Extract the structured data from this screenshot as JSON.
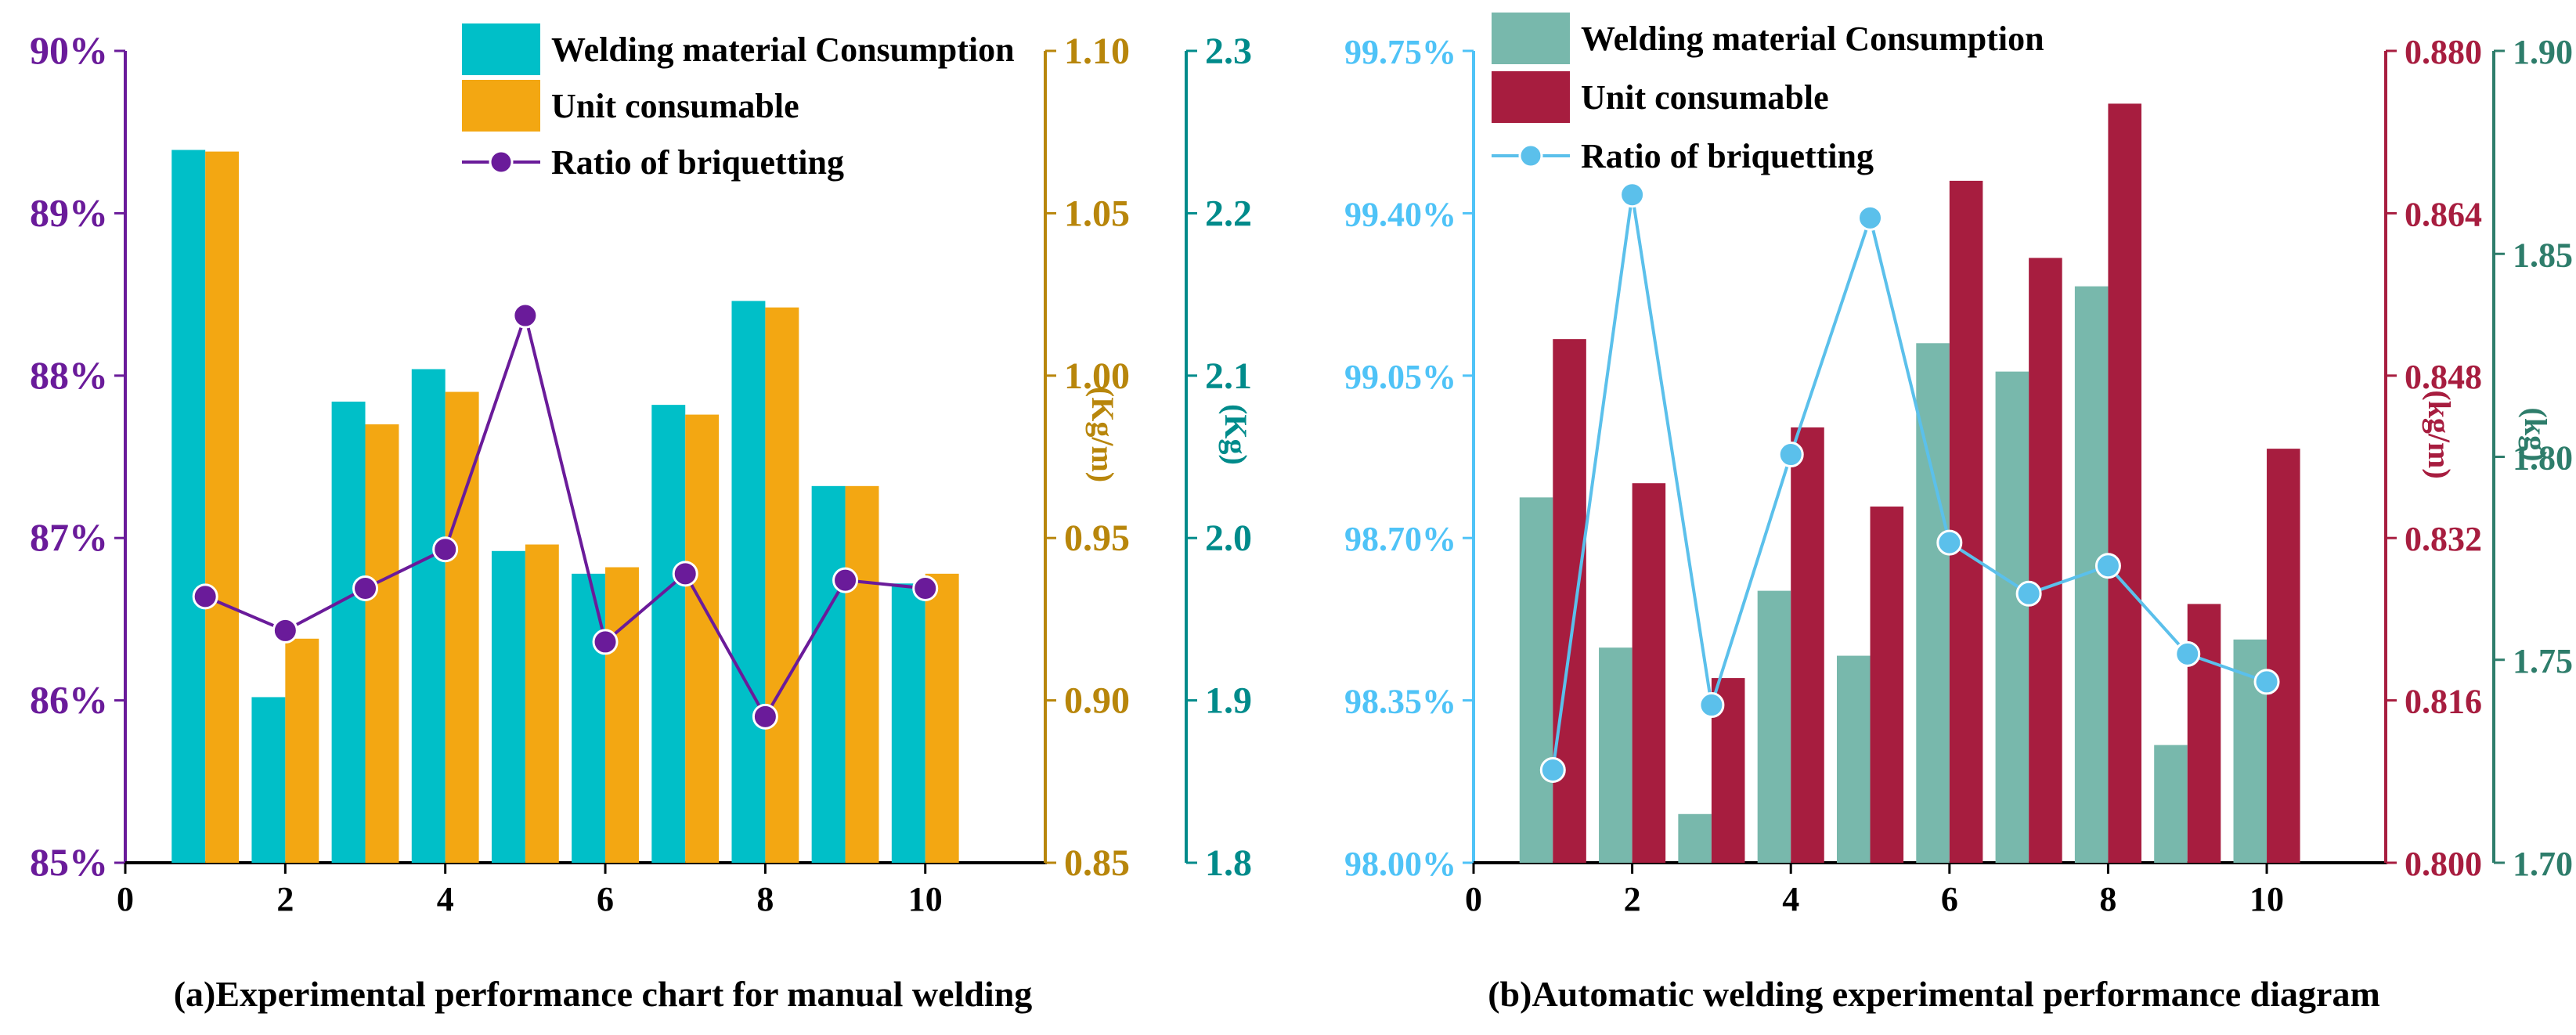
{
  "chart_data": [
    {
      "type": "bar",
      "title": "(a)Experimental performance chart for manual welding",
      "x": [
        1,
        2,
        3,
        4,
        5,
        6,
        7,
        8,
        9,
        10
      ],
      "xlim": [
        0,
        11.5
      ],
      "xticks": [
        "0",
        "2",
        "4",
        "6",
        "8",
        "10"
      ],
      "series": [
        {
          "name": "Welding material Consumption",
          "kind": "bar",
          "axis": "kg",
          "color": "#00BFC8",
          "values": [
            2.239,
            1.902,
            2.084,
            2.104,
            1.992,
            1.978,
            2.082,
            2.146,
            2.032,
            1.972
          ]
        },
        {
          "name": "Unit consumable",
          "kind": "bar",
          "axis": "kgm",
          "color": "#F3A712",
          "values": [
            1.069,
            0.919,
            0.985,
            0.995,
            0.948,
            0.941,
            0.988,
            1.021,
            0.966,
            0.939
          ]
        },
        {
          "name": "Ratio of briquetting",
          "kind": "line",
          "axis": "pct",
          "color": "#6A1B9A",
          "values": [
            86.64,
            86.43,
            86.69,
            86.93,
            88.37,
            86.36,
            86.78,
            85.9,
            86.74,
            86.69
          ]
        }
      ],
      "y_left": {
        "range": [
          85,
          90
        ],
        "ticks": [
          "85%",
          "86%",
          "87%",
          "88%",
          "89%",
          "90%"
        ],
        "color": "#6A1B9A"
      },
      "y_right1": {
        "range": [
          0.85,
          1.1
        ],
        "ticks": [
          "0.85",
          "0.90",
          "0.95",
          "1.00",
          "1.05",
          "1.10"
        ],
        "label": "(Kg/m)",
        "color": "#B8860B"
      },
      "y_right2": {
        "range": [
          1.8,
          2.3
        ],
        "ticks": [
          "1.8",
          "1.9",
          "2.0",
          "2.1",
          "2.2",
          "2.3"
        ],
        "label": "(Kg)",
        "color": "#008B8B"
      },
      "grid": false,
      "legend": "top-right"
    },
    {
      "type": "bar",
      "title": "(b)Automatic welding experimental performance diagram",
      "x": [
        1,
        2,
        3,
        4,
        5,
        6,
        7,
        8,
        9,
        10
      ],
      "xlim": [
        0,
        11.5
      ],
      "xticks": [
        "0",
        "2",
        "4",
        "6",
        "8",
        "10"
      ],
      "series": [
        {
          "name": "Welding material Consumption",
          "kind": "bar",
          "axis": "kg",
          "color": "#78B8AC",
          "values": [
            1.79,
            1.753,
            1.712,
            1.767,
            1.751,
            1.828,
            1.821,
            1.842,
            1.729,
            1.755
          ]
        },
        {
          "name": "Unit consumable",
          "kind": "bar",
          "axis": "kgm",
          "color": "#A71D3F",
          "values": [
            0.8516,
            0.8374,
            0.8182,
            0.8429,
            0.8351,
            0.8672,
            0.8596,
            0.8748,
            0.8255,
            0.8408
          ]
        },
        {
          "name": "Ratio of briquetting",
          "kind": "line",
          "axis": "pct",
          "color": "#5BC0EB",
          "values": [
            98.2,
            99.44,
            98.34,
            98.88,
            99.39,
            98.69,
            98.58,
            98.64,
            98.45,
            98.39
          ]
        }
      ],
      "y_left": {
        "range": [
          98.0,
          99.75
        ],
        "ticks": [
          "98.00%",
          "98.35%",
          "98.70%",
          "99.05%",
          "99.40%",
          "99.75%"
        ],
        "color": "#4FC3F7"
      },
      "y_right1": {
        "range": [
          0.8,
          0.88
        ],
        "ticks": [
          "0.800",
          "0.816",
          "0.832",
          "0.848",
          "0.864",
          "0.880"
        ],
        "label": "(kg/m)",
        "color": "#A71D3F"
      },
      "y_right2": {
        "range": [
          1.7,
          1.9
        ],
        "ticks": [
          "1.70",
          "1.75",
          "1.80",
          "1.85",
          "1.90"
        ],
        "label": "(kg)",
        "color": "#2E7D6B"
      },
      "grid": false,
      "legend": "top-left"
    }
  ]
}
